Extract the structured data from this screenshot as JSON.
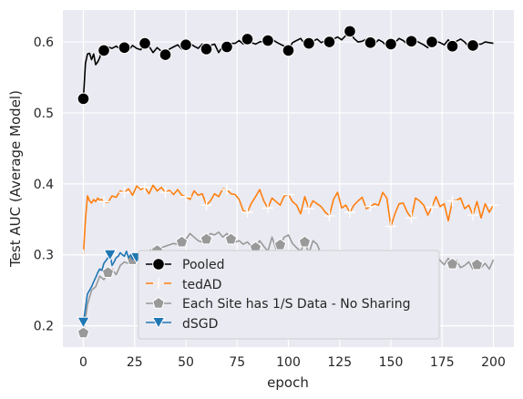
{
  "chart_data": {
    "type": "line",
    "title": "",
    "xlabel": "epoch",
    "ylabel": "Test AUC (Average Model)",
    "xlim": [
      -10,
      210
    ],
    "ylim": [
      0.17,
      0.645
    ],
    "x_ticks": [
      0,
      25,
      50,
      75,
      100,
      125,
      150,
      175,
      200
    ],
    "y_ticks": [
      0.2,
      0.3,
      0.4,
      0.5,
      0.6
    ],
    "grid": true,
    "legend_position": "lower-center",
    "background": "#eaeaf2",
    "series": [
      {
        "name": "Pooled",
        "color": "#000000",
        "marker": "circle",
        "x": [
          0,
          1,
          2,
          3,
          4,
          5,
          6,
          7,
          8,
          9,
          10,
          12,
          14,
          16,
          18,
          20,
          22,
          24,
          26,
          28,
          30,
          32,
          34,
          36,
          38,
          40,
          42,
          44,
          46,
          48,
          50,
          52,
          54,
          56,
          58,
          60,
          62,
          64,
          66,
          68,
          70,
          72,
          74,
          76,
          78,
          80,
          82,
          84,
          86,
          88,
          90,
          92,
          94,
          96,
          98,
          100,
          102,
          104,
          106,
          108,
          110,
          112,
          114,
          116,
          118,
          120,
          122,
          124,
          126,
          128,
          130,
          132,
          134,
          136,
          138,
          140,
          142,
          144,
          146,
          148,
          150,
          152,
          154,
          156,
          158,
          160,
          162,
          164,
          166,
          168,
          170,
          172,
          174,
          176,
          178,
          180,
          182,
          184,
          186,
          188,
          190,
          192,
          194,
          196,
          198,
          200
        ],
        "values": [
          0.52,
          0.57,
          0.583,
          0.584,
          0.575,
          0.583,
          0.568,
          0.572,
          0.578,
          0.595,
          0.588,
          0.593,
          0.591,
          0.594,
          0.59,
          0.592,
          0.588,
          0.595,
          0.591,
          0.589,
          0.598,
          0.594,
          0.585,
          0.592,
          0.587,
          0.582,
          0.59,
          0.593,
          0.596,
          0.59,
          0.596,
          0.598,
          0.594,
          0.591,
          0.597,
          0.59,
          0.595,
          0.597,
          0.585,
          0.594,
          0.593,
          0.598,
          0.598,
          0.602,
          0.597,
          0.604,
          0.599,
          0.597,
          0.6,
          0.601,
          0.602,
          0.604,
          0.6,
          0.597,
          0.594,
          0.588,
          0.599,
          0.602,
          0.605,
          0.597,
          0.598,
          0.601,
          0.604,
          0.599,
          0.602,
          0.6,
          0.604,
          0.607,
          0.603,
          0.609,
          0.615,
          0.605,
          0.6,
          0.601,
          0.604,
          0.599,
          0.597,
          0.603,
          0.6,
          0.594,
          0.597,
          0.599,
          0.605,
          0.602,
          0.597,
          0.601,
          0.602,
          0.599,
          0.596,
          0.592,
          0.6,
          0.601,
          0.599,
          0.596,
          0.603,
          0.594,
          0.601,
          0.604,
          0.6,
          0.593,
          0.595,
          0.597,
          0.597,
          0.6,
          0.599,
          0.598
        ],
        "markers_at": [
          0,
          10,
          20,
          30,
          40,
          50,
          60,
          70,
          80,
          90,
          100,
          110,
          120,
          130,
          140,
          150,
          160,
          170,
          180,
          190
        ]
      },
      {
        "name": "tedAD",
        "color": "#ff7f0e",
        "marker": "plus",
        "x": [
          0,
          1,
          2,
          3,
          4,
          5,
          6,
          7,
          8,
          9,
          10,
          12,
          14,
          16,
          18,
          20,
          22,
          24,
          26,
          28,
          30,
          32,
          34,
          36,
          38,
          40,
          42,
          44,
          46,
          48,
          50,
          52,
          54,
          56,
          58,
          60,
          62,
          64,
          66,
          68,
          70,
          72,
          74,
          76,
          78,
          80,
          82,
          84,
          86,
          88,
          90,
          92,
          94,
          96,
          98,
          100,
          102,
          104,
          106,
          108,
          110,
          112,
          114,
          116,
          118,
          120,
          122,
          124,
          126,
          128,
          130,
          132,
          134,
          136,
          138,
          140,
          142,
          144,
          146,
          148,
          150,
          152,
          154,
          156,
          158,
          160,
          162,
          164,
          166,
          168,
          170,
          172,
          174,
          176,
          178,
          180,
          182,
          184,
          186,
          188,
          190,
          192,
          194,
          196,
          198,
          200
        ],
        "values": [
          0.3,
          0.35,
          0.383,
          0.376,
          0.373,
          0.378,
          0.375,
          0.38,
          0.377,
          0.378,
          0.375,
          0.374,
          0.383,
          0.381,
          0.39,
          0.388,
          0.393,
          0.384,
          0.397,
          0.392,
          0.395,
          0.386,
          0.398,
          0.39,
          0.395,
          0.388,
          0.391,
          0.385,
          0.392,
          0.384,
          0.382,
          0.378,
          0.39,
          0.384,
          0.386,
          0.37,
          0.376,
          0.386,
          0.382,
          0.393,
          0.392,
          0.386,
          0.385,
          0.378,
          0.362,
          0.36,
          0.373,
          0.382,
          0.392,
          0.376,
          0.366,
          0.38,
          0.375,
          0.37,
          0.383,
          0.385,
          0.375,
          0.37,
          0.358,
          0.382,
          0.365,
          0.376,
          0.372,
          0.368,
          0.36,
          0.355,
          0.378,
          0.388,
          0.366,
          0.37,
          0.36,
          0.37,
          0.376,
          0.381,
          0.365,
          0.368,
          0.372,
          0.37,
          0.388,
          0.38,
          0.34,
          0.358,
          0.372,
          0.373,
          0.36,
          0.352,
          0.38,
          0.376,
          0.37,
          0.356,
          0.367,
          0.382,
          0.368,
          0.372,
          0.348,
          0.376,
          0.377,
          0.38,
          0.365,
          0.37,
          0.356,
          0.375,
          0.352,
          0.372,
          0.36,
          0.37
        ],
        "markers_at": [
          0,
          10,
          20,
          30,
          40,
          50,
          60,
          70,
          80,
          90,
          100,
          110,
          120,
          130,
          140,
          150,
          160,
          170,
          180,
          190,
          200
        ]
      },
      {
        "name": "Each Site has 1/S Data - No Sharing",
        "color": "#999999",
        "marker": "pentagon",
        "x": [
          0,
          2,
          4,
          6,
          8,
          10,
          12,
          14,
          16,
          18,
          20,
          22,
          24,
          26,
          28,
          30,
          32,
          34,
          36,
          38,
          40,
          42,
          44,
          46,
          48,
          50,
          52,
          54,
          56,
          58,
          60,
          62,
          64,
          66,
          68,
          70,
          72,
          74,
          76,
          78,
          80,
          82,
          84,
          86,
          88,
          90,
          92,
          94,
          96,
          98,
          100,
          102,
          104,
          106,
          108,
          110,
          112,
          114,
          116,
          118,
          120,
          122,
          124,
          126,
          128,
          130,
          132,
          134,
          136,
          138,
          140,
          142,
          144,
          146,
          148,
          150,
          152,
          154,
          156,
          158,
          160,
          162,
          164,
          166,
          168,
          170,
          172,
          174,
          176,
          178,
          180,
          182,
          184,
          186,
          188,
          190,
          192,
          194,
          196,
          198,
          200
        ],
        "values": [
          0.19,
          0.23,
          0.25,
          0.255,
          0.27,
          0.265,
          0.275,
          0.28,
          0.272,
          0.285,
          0.29,
          0.288,
          0.293,
          0.295,
          0.298,
          0.3,
          0.304,
          0.31,
          0.306,
          0.31,
          0.312,
          0.314,
          0.316,
          0.315,
          0.318,
          0.322,
          0.33,
          0.325,
          0.32,
          0.318,
          0.322,
          0.33,
          0.328,
          0.332,
          0.325,
          0.33,
          0.322,
          0.318,
          0.32,
          0.315,
          0.318,
          0.312,
          0.31,
          0.32,
          0.312,
          0.305,
          0.325,
          0.308,
          0.314,
          0.325,
          0.328,
          0.316,
          0.31,
          0.305,
          0.318,
          0.302,
          0.32,
          0.315,
          0.3,
          0.296,
          0.298,
          0.292,
          0.285,
          0.295,
          0.288,
          0.292,
          0.285,
          0.288,
          0.292,
          0.29,
          0.286,
          0.278,
          0.29,
          0.285,
          0.288,
          0.295,
          0.29,
          0.282,
          0.292,
          0.286,
          0.295,
          0.283,
          0.288,
          0.296,
          0.29,
          0.298,
          0.302,
          0.292,
          0.286,
          0.295,
          0.287,
          0.292,
          0.282,
          0.285,
          0.29,
          0.28,
          0.286,
          0.282,
          0.288,
          0.28,
          0.293
        ],
        "markers_at": [
          0,
          12,
          24,
          36,
          48,
          60,
          72,
          84,
          96,
          108,
          120,
          132,
          144,
          156,
          168,
          180,
          192
        ]
      },
      {
        "name": "dSGD",
        "color": "#1f77b4",
        "marker": "triangle-down",
        "x": [
          0,
          1,
          2,
          3,
          4,
          5,
          6,
          7,
          8,
          9,
          10,
          11,
          12,
          13,
          14,
          15,
          16,
          17,
          18,
          19,
          20,
          21,
          22,
          23,
          24,
          25,
          26,
          27
        ],
        "values": [
          0.205,
          0.225,
          0.245,
          0.25,
          0.255,
          0.262,
          0.268,
          0.275,
          0.28,
          0.278,
          0.288,
          0.292,
          0.296,
          0.3,
          0.285,
          0.29,
          0.296,
          0.298,
          0.303,
          0.3,
          0.298,
          0.305,
          0.296,
          0.3,
          0.294,
          0.3,
          0.296,
          0.302
        ],
        "markers_at": [
          0,
          13,
          26
        ]
      }
    ]
  }
}
